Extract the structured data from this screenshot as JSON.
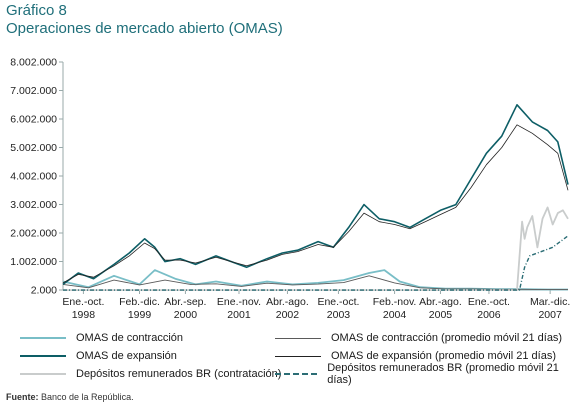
{
  "figure": {
    "label": "Gráfico 8",
    "title": "Operaciones de mercado abierto (OMAS)",
    "source_label": "Fuente:",
    "source_text": "Banco de la República."
  },
  "colors": {
    "title": "#1f6f7a",
    "contraccion": "#79bec7",
    "contraccion_avg": "#5a5a5a",
    "expansion": "#0d5e66",
    "expansion_avg": "#222222",
    "depositos": "#c9cccc",
    "depositos_avg": "#2b6d75"
  },
  "chart_data": {
    "type": "line",
    "ylim": [
      2,
      8002
    ],
    "y_ticks": [
      "8.002.000",
      "7.002.000",
      "6.002.000",
      "5.002.000",
      "4.002.000",
      "3.002.000",
      "2.002.000",
      "1.002.000",
      "2.000"
    ],
    "y_tick_values": [
      8002,
      7002,
      6002,
      5002,
      4002,
      3002,
      2002,
      1002,
      2
    ],
    "x_range": [
      1998.0,
      2007.9
    ],
    "x_ticks": [
      {
        "line1": "Ene.-oct.",
        "line2": "1998",
        "x": 1998.4
      },
      {
        "line1": "Feb.-dic.",
        "line2": "1999",
        "x": 1999.5
      },
      {
        "line1": "Abr.-sep.",
        "line2": "2000",
        "x": 2000.4
      },
      {
        "line1": "Ene.-nov.",
        "line2": "2001",
        "x": 2001.45
      },
      {
        "line1": "Abr.-ago.",
        "line2": "2002",
        "x": 2002.4
      },
      {
        "line1": "Ene.-oct.",
        "line2": "2003",
        "x": 2003.4
      },
      {
        "line1": "Feb.-nov.",
        "line2": "2004",
        "x": 2004.5
      },
      {
        "line1": "Abr.-ago.",
        "line2": "2005",
        "x": 2005.4
      },
      {
        "line1": "Ene.-oct.",
        "line2": "2006",
        "x": 2006.35
      },
      {
        "line1": "Mar.-dic.",
        "line2": "2007",
        "x": 2007.55
      }
    ],
    "series": [
      {
        "name": "OMAS de contracción",
        "style": "contraccion",
        "x": [
          1998.0,
          1998.5,
          1999.0,
          1999.5,
          1999.8,
          2000.2,
          2000.6,
          2001.0,
          2001.5,
          2002.0,
          2002.5,
          2003.0,
          2003.5,
          2004.0,
          2004.3,
          2004.6,
          2005.0,
          2005.5,
          2006.0,
          2006.5,
          2007.0,
          2007.5,
          2007.9
        ],
        "y": [
          300,
          100,
          500,
          200,
          700,
          400,
          200,
          300,
          150,
          300,
          200,
          250,
          350,
          600,
          700,
          300,
          100,
          50,
          50,
          30,
          30,
          20,
          20
        ]
      },
      {
        "name": "OMAS de contracción (promedio móvil 21 días)",
        "style": "contraccion_avg",
        "x": [
          1998.0,
          1998.5,
          1999.0,
          1999.5,
          2000.0,
          2000.5,
          2001.0,
          2001.5,
          2002.0,
          2002.5,
          2003.0,
          2003.5,
          2004.0,
          2004.5,
          2005.0,
          2005.5,
          2006.0,
          2006.5,
          2007.0,
          2007.5,
          2007.9
        ],
        "y": [
          200,
          80,
          350,
          180,
          350,
          200,
          220,
          130,
          240,
          180,
          210,
          260,
          500,
          250,
          80,
          40,
          40,
          25,
          25,
          15,
          15
        ]
      },
      {
        "name": "OMAS de expansión",
        "style": "expansion",
        "x": [
          1998.0,
          1998.3,
          1998.6,
          1999.0,
          1999.3,
          1999.6,
          1999.8,
          2000.0,
          2000.3,
          2000.6,
          2001.0,
          2001.3,
          2001.6,
          2002.0,
          2002.3,
          2002.6,
          2003.0,
          2003.3,
          2003.6,
          2003.9,
          2004.2,
          2004.5,
          2004.8,
          2005.1,
          2005.4,
          2005.7,
          2006.0,
          2006.3,
          2006.6,
          2006.9,
          2007.2,
          2007.5,
          2007.7,
          2007.9
        ],
        "y": [
          200,
          600,
          400,
          900,
          1300,
          1800,
          1500,
          1000,
          1100,
          900,
          1200,
          1000,
          800,
          1100,
          1300,
          1400,
          1700,
          1500,
          2200,
          3000,
          2500,
          2400,
          2200,
          2500,
          2800,
          3000,
          3900,
          4800,
          5400,
          6500,
          5900,
          5600,
          5200,
          3700
        ]
      },
      {
        "name": "OMAS de expansión (promedio móvil 21 días)",
        "style": "expansion_avg",
        "x": [
          1998.0,
          1998.3,
          1998.6,
          1999.0,
          1999.3,
          1999.6,
          1999.8,
          2000.0,
          2000.3,
          2000.6,
          2001.0,
          2001.3,
          2001.6,
          2002.0,
          2002.3,
          2002.6,
          2003.0,
          2003.3,
          2003.6,
          2003.9,
          2004.2,
          2004.5,
          2004.8,
          2005.1,
          2005.4,
          2005.7,
          2006.0,
          2006.3,
          2006.6,
          2006.9,
          2007.2,
          2007.5,
          2007.7,
          2007.9
        ],
        "y": [
          250,
          550,
          450,
          850,
          1200,
          1650,
          1450,
          1050,
          1050,
          950,
          1150,
          1000,
          850,
          1050,
          1250,
          1350,
          1600,
          1500,
          2050,
          2700,
          2400,
          2300,
          2150,
          2400,
          2650,
          2900,
          3600,
          4400,
          5000,
          5800,
          5500,
          5100,
          4800,
          3500
        ]
      },
      {
        "name": "Depósitos remunerados BR (contratación)",
        "style": "depositos",
        "x": [
          1998.0,
          2006.9,
          2007.0,
          2007.05,
          2007.1,
          2007.2,
          2007.3,
          2007.4,
          2007.5,
          2007.6,
          2007.7,
          2007.8,
          2007.9
        ],
        "y": [
          0,
          0,
          2400,
          1800,
          2200,
          2600,
          1500,
          2500,
          2900,
          2300,
          2700,
          2800,
          2500
        ]
      },
      {
        "name": "Depósitos remunerados BR (promedio móvil 21 días)",
        "style": "depositos_avg",
        "x": [
          1998.0,
          2006.95,
          2007.05,
          2007.15,
          2007.3,
          2007.45,
          2007.6,
          2007.75,
          2007.9
        ],
        "y": [
          0,
          0,
          800,
          1200,
          1300,
          1400,
          1500,
          1700,
          1900
        ]
      }
    ]
  },
  "legend": [
    {
      "label": "OMAS de contracción",
      "style": "contraccion"
    },
    {
      "label": "OMAS de contracción (promedio móvil 21 días)",
      "style": "contraccion_avg"
    },
    {
      "label": "OMAS de expansión",
      "style": "expansion"
    },
    {
      "label": "OMAS de expansión (promedio móvil 21 días)",
      "style": "expansion_avg"
    },
    {
      "label": "Depósitos remunerados BR (contratación)",
      "style": "depositos"
    },
    {
      "label": "Depósitos remunerados BR (promedio móvil 21 días)",
      "style": "depositos_avg"
    }
  ]
}
